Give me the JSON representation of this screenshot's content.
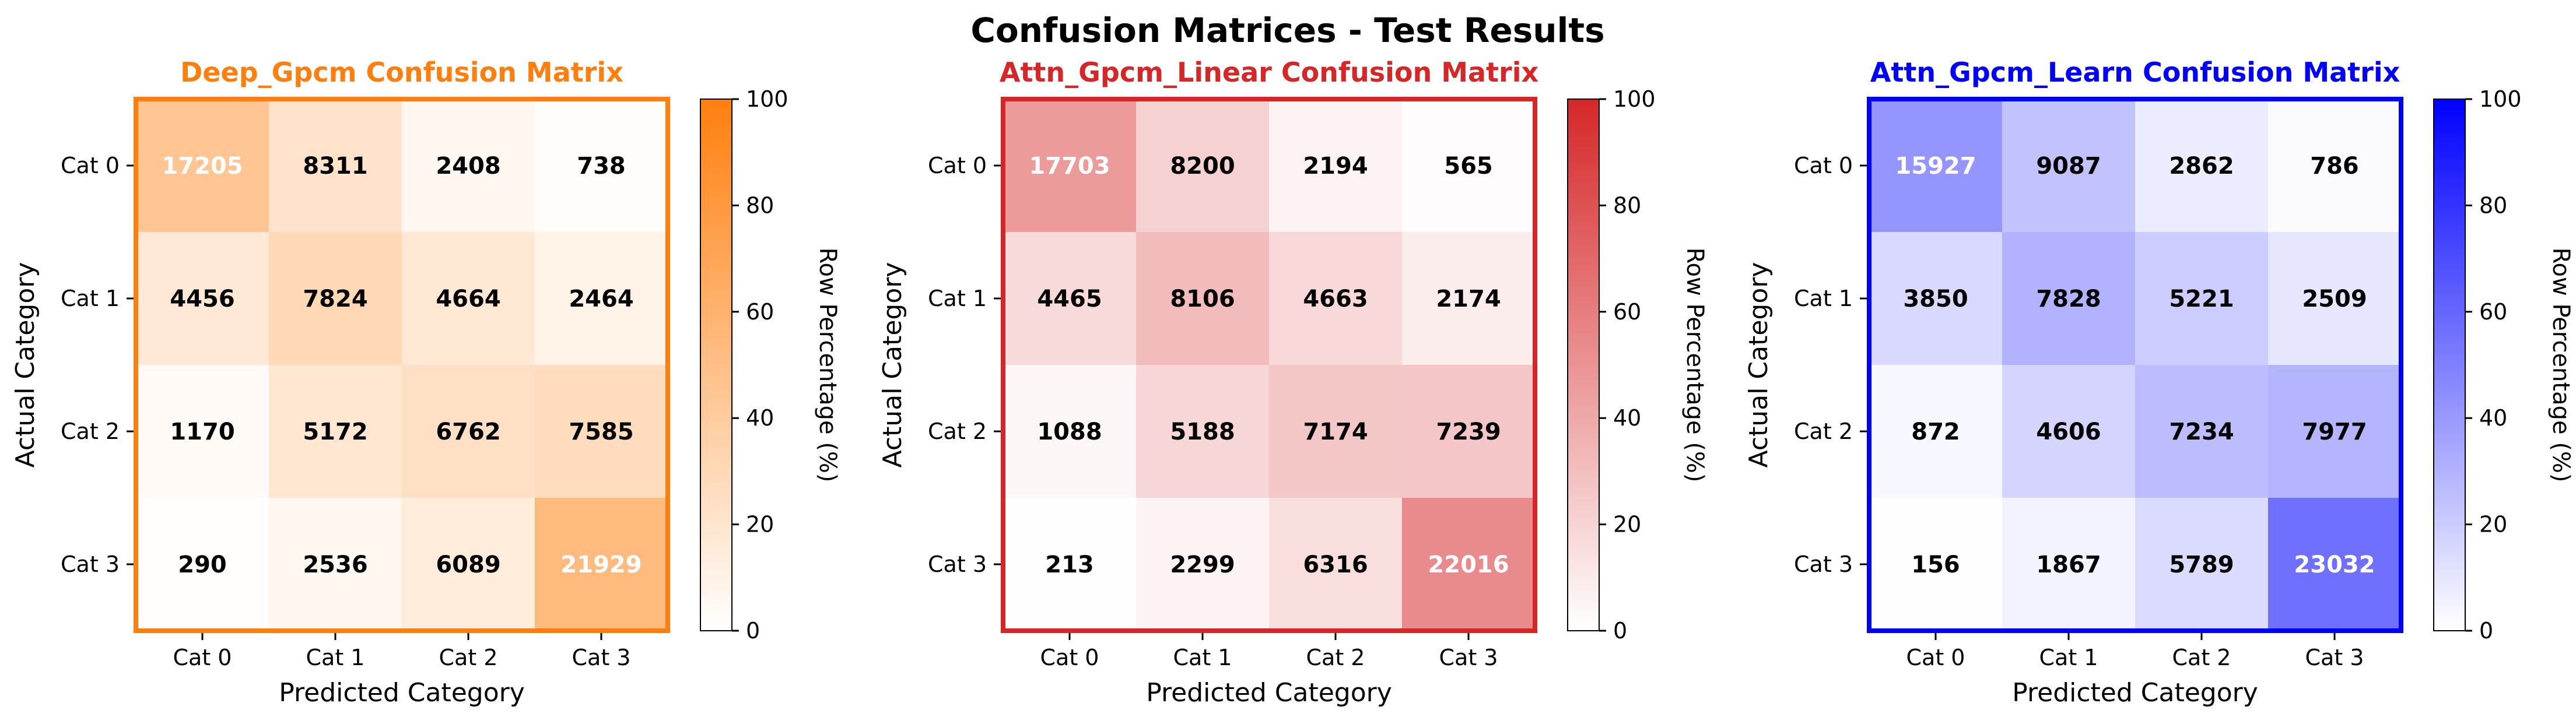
{
  "figure": {
    "title": "Confusion Matrices - Test Results"
  },
  "chart_data": [
    {
      "type": "heatmap",
      "title": "Deep_Gpcm Confusion Matrix",
      "xlabel": "Predicted Category",
      "ylabel": "Actual Category",
      "x_categories": [
        "Cat 0",
        "Cat 1",
        "Cat 2",
        "Cat 3"
      ],
      "y_categories": [
        "Cat 0",
        "Cat 1",
        "Cat 2",
        "Cat 3"
      ],
      "values": [
        [
          17205,
          8311,
          2408,
          738
        ],
        [
          4456,
          7824,
          4664,
          2464
        ],
        [
          1170,
          5172,
          6762,
          7585
        ],
        [
          290,
          2536,
          6089,
          21929
        ]
      ],
      "colorbar": {
        "label": "Row Percentage (%)",
        "range": [
          0,
          100
        ],
        "ticks": [
          "0",
          "20",
          "40",
          "60",
          "80",
          "100"
        ]
      },
      "accent_color": "#ff7f0e"
    },
    {
      "type": "heatmap",
      "title": "Attn_Gpcm_Linear Confusion Matrix",
      "xlabel": "Predicted Category",
      "ylabel": "Actual Category",
      "x_categories": [
        "Cat 0",
        "Cat 1",
        "Cat 2",
        "Cat 3"
      ],
      "y_categories": [
        "Cat 0",
        "Cat 1",
        "Cat 2",
        "Cat 3"
      ],
      "values": [
        [
          17703,
          8200,
          2194,
          565
        ],
        [
          4465,
          8106,
          4663,
          2174
        ],
        [
          1088,
          5188,
          7174,
          7239
        ],
        [
          213,
          2299,
          6316,
          22016
        ]
      ],
      "colorbar": {
        "label": "Row Percentage (%)",
        "range": [
          0,
          100
        ],
        "ticks": [
          "0",
          "20",
          "40",
          "60",
          "80",
          "100"
        ]
      },
      "accent_color": "#d62728"
    },
    {
      "type": "heatmap",
      "title": "Attn_Gpcm_Learn Confusion Matrix",
      "xlabel": "Predicted Category",
      "ylabel": "Actual Category",
      "x_categories": [
        "Cat 0",
        "Cat 1",
        "Cat 2",
        "Cat 3"
      ],
      "y_categories": [
        "Cat 0",
        "Cat 1",
        "Cat 2",
        "Cat 3"
      ],
      "values": [
        [
          15927,
          9087,
          2862,
          786
        ],
        [
          3850,
          7828,
          5221,
          2509
        ],
        [
          872,
          4606,
          7234,
          7977
        ],
        [
          156,
          1867,
          5789,
          23032
        ]
      ],
      "colorbar": {
        "label": "Row Percentage (%)",
        "range": [
          0,
          100
        ],
        "ticks": [
          "0",
          "20",
          "40",
          "60",
          "80",
          "100"
        ]
      },
      "accent_color": "#0000ff"
    }
  ]
}
